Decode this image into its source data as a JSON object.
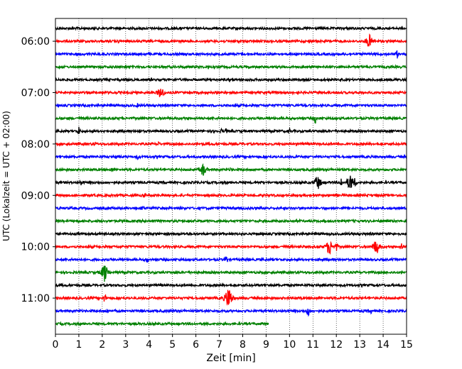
{
  "chart_data": {
    "type": "line",
    "chart_kind": "seismic helicorder",
    "xlabel": "Zeit  [min]",
    "ylabel": "UTC (Lokalzeit = UTC + 02:00)",
    "xlim": [
      0,
      15
    ],
    "x_ticks": [
      "0",
      "1",
      "2",
      "3",
      "4",
      "5",
      "6",
      "7",
      "8",
      "9",
      "10",
      "11",
      "12",
      "13",
      "14",
      "15"
    ],
    "y_tick_labels": [
      "06:00",
      "07:00",
      "08:00",
      "09:00",
      "10:00",
      "11:00"
    ],
    "line_interval_min": 15,
    "colors": [
      "#000000",
      "#ff0000",
      "#0000ff",
      "#008000"
    ],
    "grid": "vertical dotted at each minute",
    "traces": [
      {
        "start": "05:45",
        "end_min": 15,
        "events": []
      },
      {
        "start": "06:00",
        "end_min": 15,
        "events": [
          [
            2.7,
            4
          ],
          [
            13.4,
            12
          ],
          [
            13.6,
            6
          ]
        ]
      },
      {
        "start": "06:15",
        "end_min": 15,
        "events": [
          [
            14.6,
            7
          ]
        ]
      },
      {
        "start": "06:30",
        "end_min": 15,
        "events": [
          [
            4.0,
            3
          ],
          [
            6.5,
            3
          ],
          [
            10.0,
            3
          ],
          [
            12.9,
            3
          ]
        ]
      },
      {
        "start": "06:45",
        "end_min": 15,
        "events": []
      },
      {
        "start": "07:00",
        "end_min": 15,
        "events": [
          [
            4.5,
            11
          ]
        ]
      },
      {
        "start": "07:15",
        "end_min": 15,
        "events": [
          [
            3.5,
            4
          ]
        ]
      },
      {
        "start": "07:30",
        "end_min": 15,
        "events": [
          [
            5.5,
            4
          ],
          [
            11.1,
            9
          ]
        ]
      },
      {
        "start": "07:45",
        "end_min": 15,
        "events": [
          [
            1.0,
            7
          ],
          [
            3.6,
            4
          ],
          [
            6.8,
            5
          ],
          [
            7.1,
            5
          ],
          [
            7.3,
            5
          ],
          [
            10.0,
            5
          ]
        ]
      },
      {
        "start": "08:00",
        "end_min": 15,
        "events": [
          [
            1.7,
            4
          ],
          [
            4.4,
            4
          ]
        ]
      },
      {
        "start": "08:15",
        "end_min": 15,
        "events": [
          [
            2.6,
            5
          ],
          [
            3.5,
            5
          ],
          [
            10.3,
            5
          ]
        ]
      },
      {
        "start": "08:30",
        "end_min": 15,
        "events": [
          [
            2.4,
            5
          ],
          [
            6.3,
            11
          ],
          [
            7.5,
            4
          ]
        ]
      },
      {
        "start": "08:45",
        "end_min": 15,
        "events": [
          [
            1.1,
            6
          ],
          [
            11.2,
            13
          ],
          [
            12.2,
            9
          ],
          [
            12.6,
            14
          ],
          [
            12.8,
            9
          ]
        ]
      },
      {
        "start": "09:00",
        "end_min": 15,
        "events": [
          [
            3.8,
            5
          ],
          [
            13.3,
            4
          ]
        ]
      },
      {
        "start": "09:15",
        "end_min": 15,
        "events": [
          [
            3.7,
            6
          ]
        ]
      },
      {
        "start": "09:30",
        "end_min": 15,
        "events": []
      },
      {
        "start": "09:45",
        "end_min": 15,
        "events": [
          [
            5.7,
            3
          ],
          [
            14.7,
            3
          ]
        ]
      },
      {
        "start": "10:00",
        "end_min": 15,
        "events": [
          [
            11.7,
            14
          ],
          [
            12.0,
            8
          ],
          [
            13.7,
            14
          ],
          [
            14.8,
            6
          ]
        ]
      },
      {
        "start": "10:15",
        "end_min": 15,
        "events": [
          [
            3.9,
            6
          ],
          [
            7.3,
            8
          ],
          [
            9.3,
            3
          ]
        ]
      },
      {
        "start": "10:30",
        "end_min": 15,
        "events": [
          [
            2.1,
            16
          ]
        ]
      },
      {
        "start": "10:45",
        "end_min": 15,
        "events": []
      },
      {
        "start": "11:00",
        "end_min": 15,
        "events": [
          [
            2.1,
            9
          ],
          [
            7.4,
            20
          ],
          [
            10.5,
            3
          ]
        ]
      },
      {
        "start": "11:15",
        "end_min": 15,
        "events": [
          [
            2.2,
            4
          ],
          [
            10.8,
            10
          ],
          [
            13.5,
            5
          ]
        ]
      },
      {
        "start": "11:30",
        "end_min": 9.1,
        "events": []
      }
    ]
  }
}
